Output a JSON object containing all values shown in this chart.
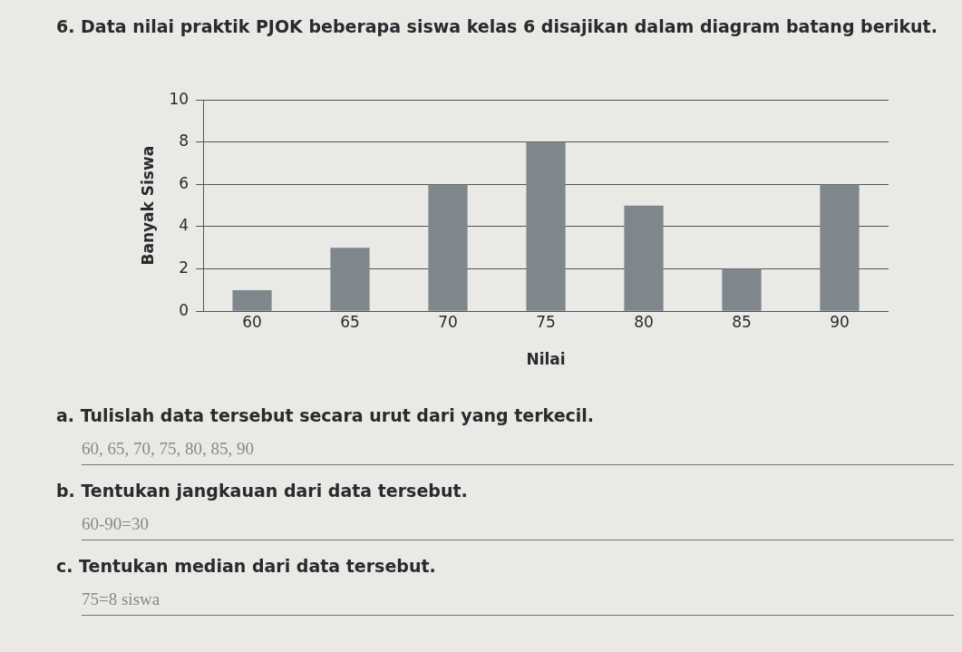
{
  "chart_data": {
    "type": "bar",
    "title": "6. Data nilai praktik PJOK beberapa siswa kelas 6 disajikan dalam diagram batang berikut.",
    "xlabel": "Nilai",
    "ylabel": "Banyak Siswa",
    "categories": [
      "60",
      "65",
      "70",
      "75",
      "80",
      "85",
      "90"
    ],
    "values": [
      1,
      3,
      6,
      8,
      5,
      2,
      6
    ],
    "color": "#7f868c",
    "ylim": [
      0,
      10
    ],
    "yticks": [
      0,
      2,
      4,
      6,
      8,
      10
    ],
    "grid": "y",
    "annotations": [
      "a. Tulislah data tersebut secara urut dari yang terkecil.",
      "60, 65, 70, 75, 80, 85, 90",
      "b. Tentukan jangkauan dari data tersebut.",
      "60-90=30",
      "c. Tentukan median dari data tersebut.",
      "75=8 siswa"
    ]
  }
}
